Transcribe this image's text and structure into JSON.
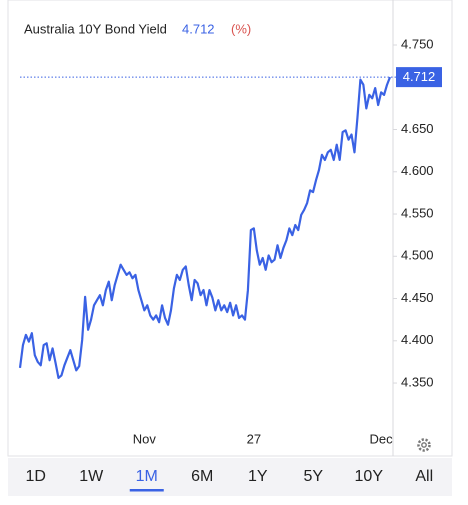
{
  "chart_data": {
    "type": "line",
    "title": "Australia 10Y Bond Yield",
    "unit": "(%)",
    "color": "#3a62e4",
    "categories": [
      null,
      null,
      null,
      null,
      null,
      null,
      null,
      null,
      null,
      null,
      null,
      null,
      null,
      null,
      null,
      null,
      null,
      null,
      null,
      null,
      null,
      null,
      null,
      null,
      null,
      null,
      null,
      null,
      null,
      null,
      null,
      null,
      null,
      null,
      null,
      null,
      null,
      null,
      null,
      null,
      null,
      null,
      "Nov",
      null,
      null,
      null,
      null,
      null,
      null,
      null,
      null,
      null,
      null,
      null,
      null,
      null,
      null,
      null,
      null,
      null,
      null,
      null,
      null,
      null,
      null,
      null,
      null,
      null,
      null,
      null,
      null,
      null,
      null,
      null,
      null,
      null,
      null,
      null,
      null,
      "27",
      null,
      null,
      null,
      null,
      null,
      null,
      null,
      null,
      null,
      null,
      null,
      null,
      null,
      null,
      null,
      null,
      null,
      null,
      null,
      null,
      null,
      null,
      null,
      null,
      null,
      null,
      null,
      null,
      null,
      null,
      null,
      null,
      null,
      null,
      null,
      null,
      null,
      null,
      null,
      null,
      null,
      null,
      "Dec",
      null,
      null,
      null
    ],
    "values": [
      4.368,
      4.395,
      4.407,
      4.399,
      4.409,
      4.383,
      4.375,
      4.371,
      4.395,
      4.397,
      4.377,
      4.391,
      4.374,
      4.356,
      4.359,
      4.371,
      4.38,
      4.389,
      4.377,
      4.365,
      4.37,
      4.401,
      4.452,
      4.413,
      4.425,
      4.442,
      4.448,
      4.454,
      4.442,
      4.46,
      4.47,
      4.448,
      4.466,
      4.478,
      4.49,
      4.484,
      4.478,
      4.481,
      4.474,
      4.478,
      4.46,
      4.448,
      4.436,
      4.442,
      4.43,
      4.425,
      4.43,
      4.422,
      4.442,
      4.427,
      4.419,
      4.436,
      4.462,
      4.478,
      4.472,
      4.484,
      4.488,
      4.466,
      4.448,
      4.472,
      4.468,
      4.454,
      4.46,
      4.442,
      4.46,
      4.451,
      4.436,
      4.448,
      4.436,
      4.442,
      4.434,
      4.445,
      4.43,
      4.442,
      4.427,
      4.43,
      4.425,
      4.46,
      4.531,
      4.533,
      4.507,
      4.49,
      4.498,
      4.484,
      4.501,
      4.493,
      4.496,
      4.513,
      4.498,
      4.51,
      4.519,
      4.533,
      4.525,
      4.537,
      4.531,
      4.549,
      4.555,
      4.563,
      4.578,
      4.576,
      4.59,
      4.602,
      4.62,
      4.614,
      4.623,
      4.626,
      4.614,
      4.632,
      4.614,
      4.647,
      4.649,
      4.638,
      4.644,
      4.623,
      4.664,
      4.709,
      4.703,
      4.675,
      4.691,
      4.687,
      4.699,
      4.679,
      4.694,
      4.691,
      4.703,
      4.712
    ],
    "ylim": [
      4.3,
      4.79
    ],
    "yticks": [
      {
        "value": 4.35,
        "label": "4.350"
      },
      {
        "value": 4.4,
        "label": "4.400"
      },
      {
        "value": 4.45,
        "label": "4.450"
      },
      {
        "value": 4.5,
        "label": "4.500"
      },
      {
        "value": 4.55,
        "label": "4.550"
      },
      {
        "value": 4.6,
        "label": "4.600"
      },
      {
        "value": 4.65,
        "label": "4.650"
      },
      {
        "value": 4.75,
        "label": "4.750"
      }
    ],
    "grid": false
  },
  "range_tabs": {
    "options": [
      "1D",
      "1W",
      "1M",
      "6M",
      "1Y",
      "5Y",
      "10Y",
      "All"
    ],
    "selected": "1M"
  }
}
